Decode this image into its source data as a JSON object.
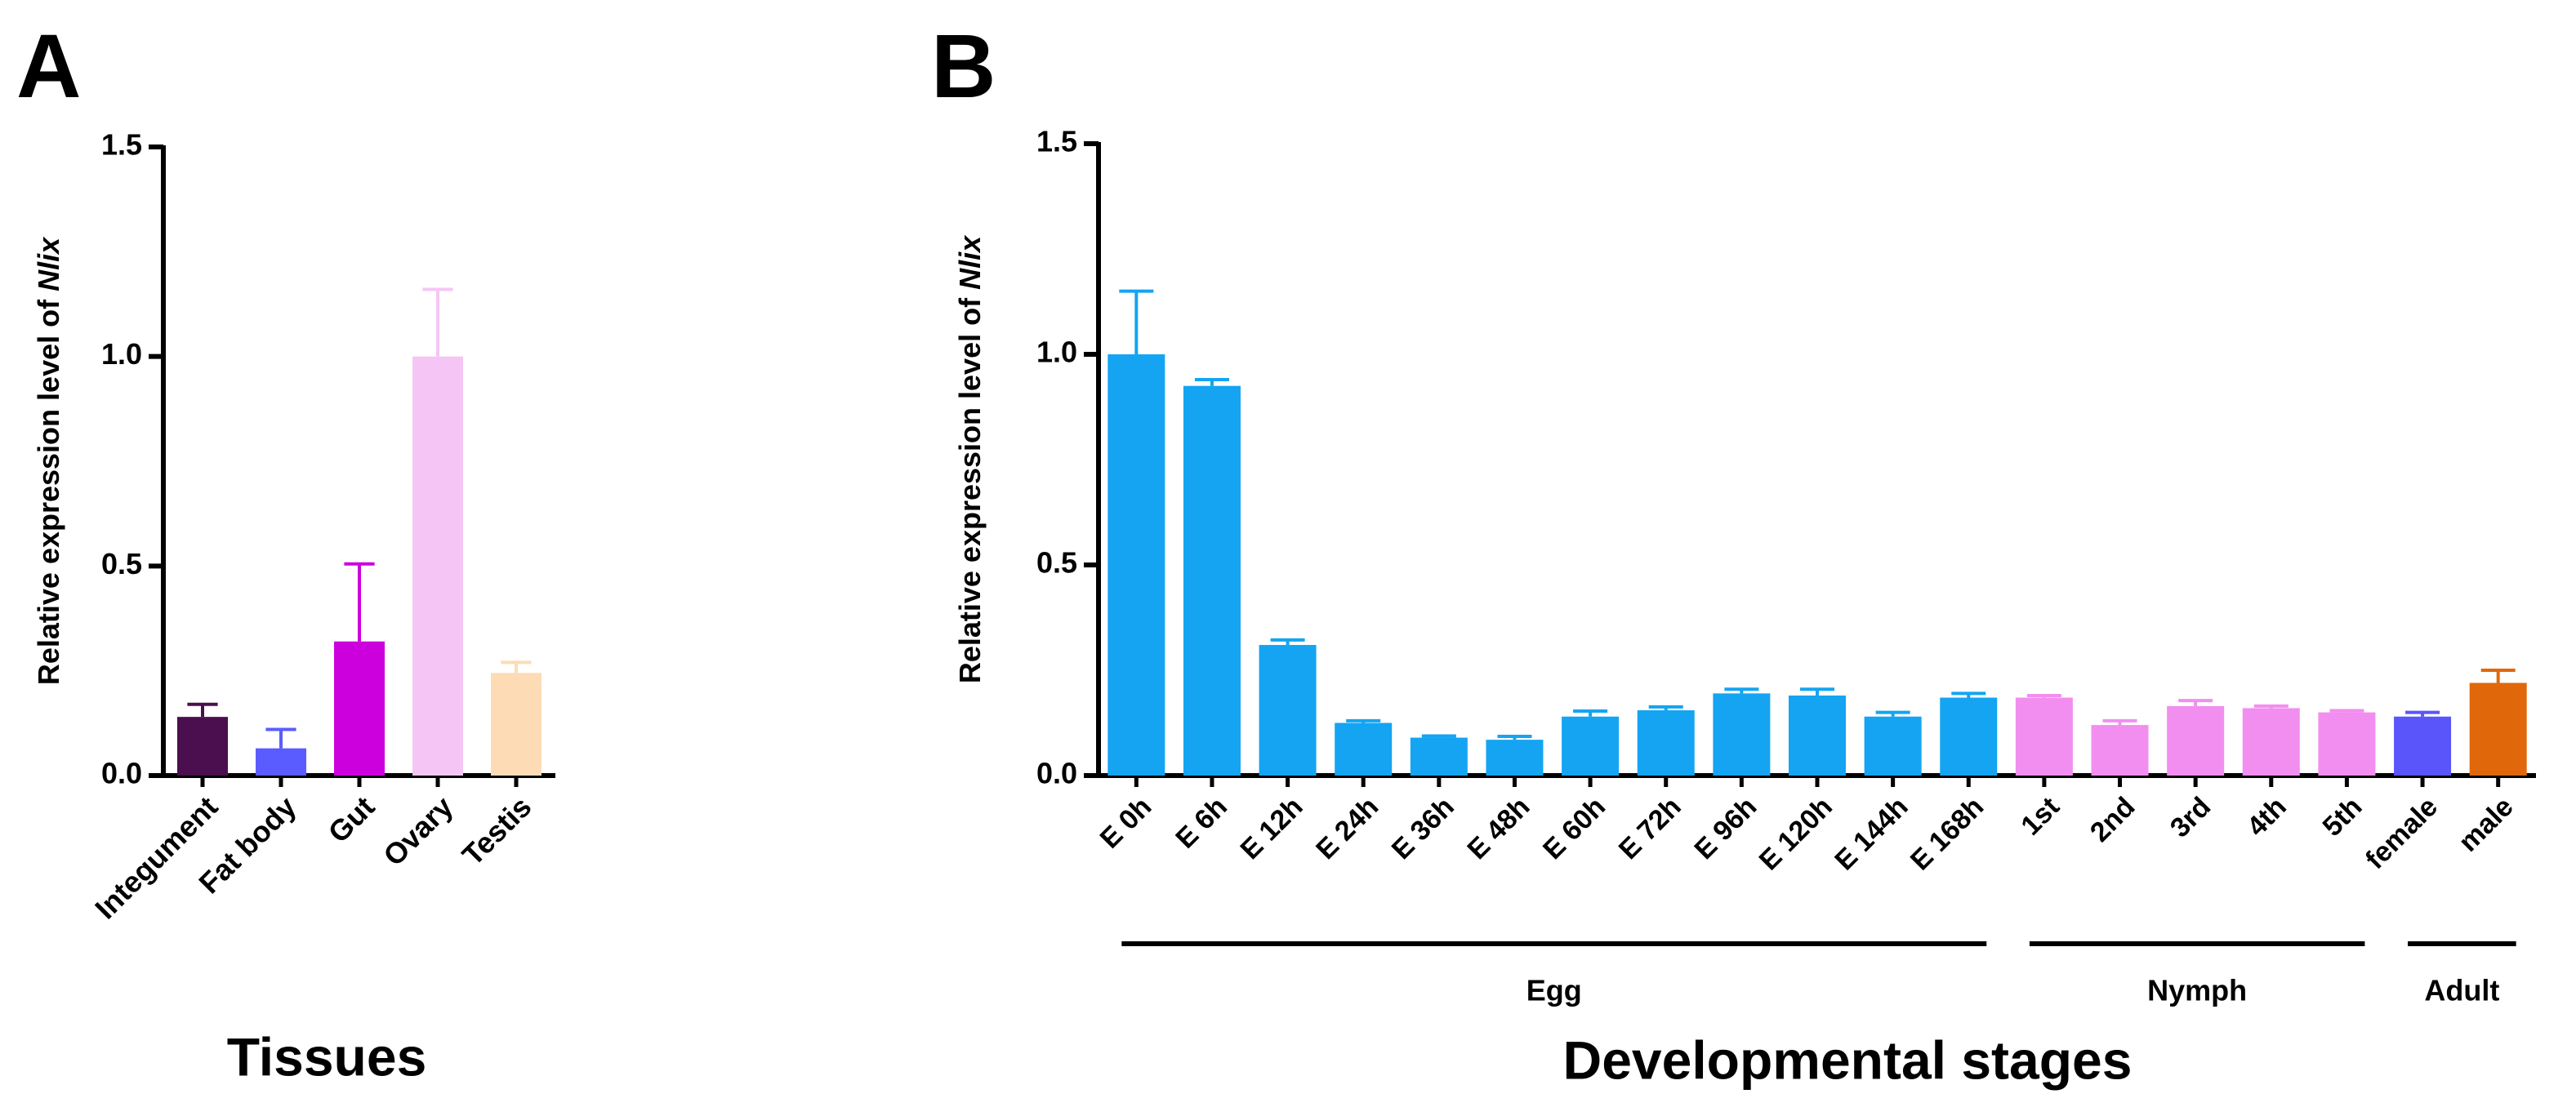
{
  "chart_data": [
    {
      "type": "bar",
      "panel": "A",
      "ylabel": "Relative expression level of ",
      "ylabel_italic": "Nlix",
      "xlabel": "Tissues",
      "categories": [
        "Integument",
        "Fat body",
        "Gut",
        "Ovary",
        "Testis"
      ],
      "values": [
        0.14,
        0.065,
        0.32,
        1.0,
        0.245
      ],
      "errors": [
        0.03,
        0.045,
        0.185,
        0.16,
        0.025
      ],
      "colors": [
        "#4b0f4f",
        "#5a5cff",
        "#cc00dd",
        "#f5c6f5",
        "#fddcb5"
      ],
      "ylim": [
        0,
        1.5
      ],
      "yticks": [
        {
          "value": 0,
          "label": "0.0"
        },
        {
          "value": 0.5,
          "label": "0.5"
        },
        {
          "value": 1,
          "label": "1.0"
        },
        {
          "value": 1.5,
          "label": "1.5"
        }
      ]
    },
    {
      "type": "bar",
      "panel": "B",
      "ylabel": "Relative expression level of ",
      "ylabel_italic": "Nlix",
      "xlabel": "Developmental stages",
      "categories": [
        "E 0h",
        "E 6h",
        "E 12h",
        "E 24h",
        "E 36h",
        "E 48h",
        "E 60h",
        "E 72h",
        "E 96h",
        "E 120h",
        "E 144h",
        "E 168h",
        "1st",
        "2nd",
        "3rd",
        "4th",
        "5th",
        "female",
        "male"
      ],
      "values": [
        1.0,
        0.925,
        0.31,
        0.125,
        0.09,
        0.085,
        0.14,
        0.155,
        0.195,
        0.19,
        0.14,
        0.185,
        0.185,
        0.12,
        0.165,
        0.16,
        0.15,
        0.14,
        0.22
      ],
      "errors": [
        0.15,
        0.015,
        0.012,
        0.005,
        0.004,
        0.008,
        0.013,
        0.008,
        0.01,
        0.015,
        0.01,
        0.01,
        0.005,
        0.01,
        0.013,
        0.005,
        0.004,
        0.01,
        0.03
      ],
      "colors": [
        "#14a4f2",
        "#14a4f2",
        "#14a4f2",
        "#14a4f2",
        "#14a4f2",
        "#14a4f2",
        "#14a4f2",
        "#14a4f2",
        "#14a4f2",
        "#14a4f2",
        "#14a4f2",
        "#14a4f2",
        "#f28ef0",
        "#f28ef0",
        "#f28ef0",
        "#f28ef0",
        "#f28ef0",
        "#5a55fa",
        "#e0680a"
      ],
      "groups": [
        {
          "name": "Egg",
          "members": [
            "E 0h",
            "E 6h",
            "E 12h",
            "E 24h",
            "E 36h",
            "E 48h",
            "E 60h",
            "E 72h",
            "E 96h",
            "E 120h",
            "E 144h",
            "E 168h"
          ]
        },
        {
          "name": "Nymph",
          "members": [
            "1st",
            "2nd",
            "3rd",
            "4th",
            "5th"
          ]
        },
        {
          "name": "Adult",
          "members": [
            "female",
            "male"
          ]
        }
      ],
      "ylim": [
        0,
        1.5
      ],
      "yticks": [
        {
          "value": 0,
          "label": "0.0"
        },
        {
          "value": 0.5,
          "label": "0.5"
        },
        {
          "value": 1,
          "label": "1.0"
        },
        {
          "value": 1.5,
          "label": "1.5"
        }
      ]
    }
  ]
}
